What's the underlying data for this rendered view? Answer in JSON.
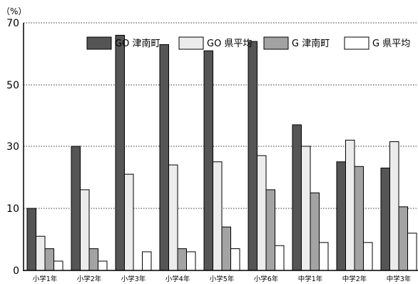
{
  "chart_data": {
    "type": "bar",
    "unit_label": "（%）",
    "categories": [
      "小学1年",
      "小学2年",
      "小学3年",
      "小学4年",
      "小学5年",
      "小学6年",
      "中学1年",
      "中学2年",
      "中学3年"
    ],
    "series": [
      {
        "name": "GO 津南町",
        "color": "#555555",
        "values": [
          10,
          30,
          66,
          63,
          61,
          64,
          37,
          25,
          23
        ]
      },
      {
        "name": "GO 県平均",
        "color": "#ececec",
        "values": [
          5.5,
          16,
          21,
          24,
          25,
          27,
          30,
          32,
          31.5
        ]
      },
      {
        "name": "G 津南町",
        "color": "#a3a3a3",
        "values": [
          3.5,
          3.5,
          0,
          3.5,
          7,
          16,
          15,
          23.5,
          10.5
        ]
      },
      {
        "name": "G 県平均",
        "color": "#ffffff",
        "values": [
          1.5,
          1.5,
          3,
          3,
          3.5,
          4,
          4.5,
          4.5,
          6
        ]
      }
    ],
    "y_ticks": [
      "0",
      "10",
      "30",
      "50",
      "70"
    ],
    "grid": "dotted horizontal",
    "legend": "top-right"
  }
}
